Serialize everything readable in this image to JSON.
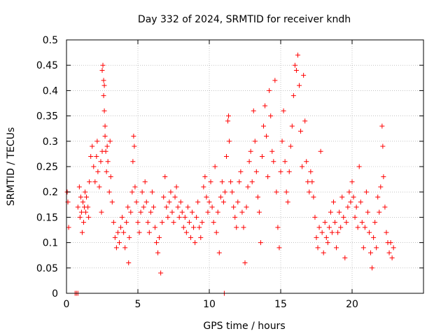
{
  "chart_data": {
    "type": "scatter",
    "title": "Day 332 of 2024, SRMTID for receiver kndh",
    "xlabel": "GPS time / hours",
    "ylabel": "SRMTID / TECUs",
    "xlim": [
      0,
      25
    ],
    "ylim": [
      0,
      0.5
    ],
    "x_ticks": [
      0,
      5,
      10,
      15,
      20
    ],
    "x_tick_labels": [
      "0",
      "5",
      "10",
      "15",
      "20"
    ],
    "y_ticks": [
      0,
      0.05,
      0.1,
      0.15,
      0.2,
      0.25,
      0.3,
      0.35,
      0.4,
      0.45,
      0.5
    ],
    "y_tick_labels": [
      "0",
      "0.05",
      "0.1",
      "0.15",
      "0.2",
      "0.25",
      "0.3",
      "0.35",
      "0.4",
      "0.45",
      "0.5"
    ],
    "grid": true,
    "marker": "plus",
    "marker_color": "#ff0000",
    "series": [
      {
        "name": "SRMTID",
        "points": [
          [
            0.05,
            0.2
          ],
          [
            0.1,
            0.18
          ],
          [
            0.15,
            0.13
          ],
          [
            0.6,
            0.0
          ],
          [
            0.7,
            0.0
          ],
          [
            0.8,
            0.0
          ],
          [
            0.8,
            0.17
          ],
          [
            0.9,
            0.21
          ],
          [
            0.95,
            0.15
          ],
          [
            1.0,
            0.19
          ],
          [
            1.05,
            0.16
          ],
          [
            1.1,
            0.12
          ],
          [
            1.15,
            0.18
          ],
          [
            1.2,
            0.14
          ],
          [
            1.25,
            0.17
          ],
          [
            1.3,
            0.2
          ],
          [
            1.35,
            0.16
          ],
          [
            1.4,
            0.19
          ],
          [
            1.5,
            0.17
          ],
          [
            1.55,
            0.15
          ],
          [
            1.6,
            0.22
          ],
          [
            1.7,
            0.27
          ],
          [
            1.8,
            0.29
          ],
          [
            1.9,
            0.25
          ],
          [
            2.0,
            0.22
          ],
          [
            2.1,
            0.27
          ],
          [
            2.15,
            0.3
          ],
          [
            2.2,
            0.24
          ],
          [
            2.3,
            0.21
          ],
          [
            2.4,
            0.26
          ],
          [
            2.45,
            0.16
          ],
          [
            2.5,
            0.28
          ],
          [
            2.5,
            0.44
          ],
          [
            2.55,
            0.45
          ],
          [
            2.6,
            0.42
          ],
          [
            2.6,
            0.39
          ],
          [
            2.65,
            0.36
          ],
          [
            2.65,
            0.41
          ],
          [
            2.7,
            0.33
          ],
          [
            2.7,
            0.31
          ],
          [
            2.75,
            0.28
          ],
          [
            2.8,
            0.24
          ],
          [
            2.85,
            0.29
          ],
          [
            2.9,
            0.26
          ],
          [
            3.0,
            0.2
          ],
          [
            3.05,
            0.3
          ],
          [
            3.1,
            0.23
          ],
          [
            3.2,
            0.18
          ],
          [
            3.3,
            0.14
          ],
          [
            3.4,
            0.11
          ],
          [
            3.5,
            0.09
          ],
          [
            3.6,
            0.12
          ],
          [
            3.7,
            0.1
          ],
          [
            3.8,
            0.13
          ],
          [
            3.9,
            0.15
          ],
          [
            4.0,
            0.12
          ],
          [
            4.1,
            0.09
          ],
          [
            4.2,
            0.14
          ],
          [
            4.3,
            0.17
          ],
          [
            4.35,
            0.06
          ],
          [
            4.4,
            0.11
          ],
          [
            4.5,
            0.16
          ],
          [
            4.6,
            0.2
          ],
          [
            4.65,
            0.26
          ],
          [
            4.7,
            0.31
          ],
          [
            4.75,
            0.29
          ],
          [
            4.8,
            0.21
          ],
          [
            4.9,
            0.18
          ],
          [
            5.0,
            0.14
          ],
          [
            5.1,
            0.12
          ],
          [
            5.2,
            0.16
          ],
          [
            5.3,
            0.2
          ],
          [
            5.4,
            0.17
          ],
          [
            5.5,
            0.22
          ],
          [
            5.6,
            0.18
          ],
          [
            5.7,
            0.14
          ],
          [
            5.8,
            0.12
          ],
          [
            5.9,
            0.16
          ],
          [
            6.0,
            0.2
          ],
          [
            6.1,
            0.17
          ],
          [
            6.2,
            0.13
          ],
          [
            6.3,
            0.1
          ],
          [
            6.4,
            0.08
          ],
          [
            6.5,
            0.11
          ],
          [
            6.6,
            0.04
          ],
          [
            6.7,
            0.14
          ],
          [
            6.8,
            0.19
          ],
          [
            6.9,
            0.23
          ],
          [
            7.0,
            0.17
          ],
          [
            7.1,
            0.15
          ],
          [
            7.2,
            0.18
          ],
          [
            7.3,
            0.2
          ],
          [
            7.4,
            0.16
          ],
          [
            7.5,
            0.14
          ],
          [
            7.6,
            0.19
          ],
          [
            7.7,
            0.21
          ],
          [
            7.8,
            0.17
          ],
          [
            7.9,
            0.15
          ],
          [
            8.0,
            0.18
          ],
          [
            8.1,
            0.16
          ],
          [
            8.2,
            0.13
          ],
          [
            8.3,
            0.15
          ],
          [
            8.4,
            0.12
          ],
          [
            8.5,
            0.17
          ],
          [
            8.6,
            0.14
          ],
          [
            8.7,
            0.11
          ],
          [
            8.8,
            0.16
          ],
          [
            8.9,
            0.13
          ],
          [
            9.0,
            0.1
          ],
          [
            9.1,
            0.15
          ],
          [
            9.2,
            0.18
          ],
          [
            9.3,
            0.13
          ],
          [
            9.4,
            0.11
          ],
          [
            9.5,
            0.14
          ],
          [
            9.6,
            0.21
          ],
          [
            9.7,
            0.23
          ],
          [
            9.8,
            0.19
          ],
          [
            9.9,
            0.16
          ],
          [
            10.0,
            0.18
          ],
          [
            10.1,
            0.22
          ],
          [
            10.2,
            0.17
          ],
          [
            10.3,
            0.14
          ],
          [
            10.4,
            0.25
          ],
          [
            10.5,
            0.12
          ],
          [
            10.6,
            0.16
          ],
          [
            10.7,
            0.08
          ],
          [
            10.8,
            0.19
          ],
          [
            10.9,
            0.22
          ],
          [
            11.0,
            0.18
          ],
          [
            11.05,
            0.0
          ],
          [
            11.1,
            0.2
          ],
          [
            11.2,
            0.27
          ],
          [
            11.3,
            0.34
          ],
          [
            11.35,
            0.35
          ],
          [
            11.4,
            0.3
          ],
          [
            11.5,
            0.22
          ],
          [
            11.6,
            0.2
          ],
          [
            11.7,
            0.17
          ],
          [
            11.8,
            0.15
          ],
          [
            11.9,
            0.13
          ],
          [
            12.0,
            0.18
          ],
          [
            12.1,
            0.22
          ],
          [
            12.2,
            0.24
          ],
          [
            12.3,
            0.16
          ],
          [
            12.4,
            0.13
          ],
          [
            12.5,
            0.06
          ],
          [
            12.6,
            0.17
          ],
          [
            12.7,
            0.21
          ],
          [
            12.8,
            0.26
          ],
          [
            12.9,
            0.28
          ],
          [
            13.0,
            0.22
          ],
          [
            13.1,
            0.36
          ],
          [
            13.2,
            0.3
          ],
          [
            13.3,
            0.24
          ],
          [
            13.4,
            0.19
          ],
          [
            13.5,
            0.16
          ],
          [
            13.6,
            0.1
          ],
          [
            13.7,
            0.27
          ],
          [
            13.8,
            0.33
          ],
          [
            13.9,
            0.37
          ],
          [
            14.0,
            0.31
          ],
          [
            14.1,
            0.23
          ],
          [
            14.2,
            0.4
          ],
          [
            14.3,
            0.35
          ],
          [
            14.4,
            0.28
          ],
          [
            14.5,
            0.26
          ],
          [
            14.6,
            0.42
          ],
          [
            14.7,
            0.2
          ],
          [
            14.8,
            0.13
          ],
          [
            14.9,
            0.09
          ],
          [
            15.0,
            0.24
          ],
          [
            15.1,
            0.3
          ],
          [
            15.2,
            0.36
          ],
          [
            15.3,
            0.26
          ],
          [
            15.4,
            0.2
          ],
          [
            15.5,
            0.18
          ],
          [
            15.6,
            0.24
          ],
          [
            15.7,
            0.29
          ],
          [
            15.8,
            0.33
          ],
          [
            15.9,
            0.39
          ],
          [
            16.0,
            0.45
          ],
          [
            16.1,
            0.44
          ],
          [
            16.2,
            0.47
          ],
          [
            16.3,
            0.41
          ],
          [
            16.4,
            0.32
          ],
          [
            16.5,
            0.25
          ],
          [
            16.6,
            0.43
          ],
          [
            16.7,
            0.34
          ],
          [
            16.8,
            0.26
          ],
          [
            16.9,
            0.22
          ],
          [
            17.0,
            0.2
          ],
          [
            17.1,
            0.24
          ],
          [
            17.2,
            0.22
          ],
          [
            17.3,
            0.19
          ],
          [
            17.4,
            0.15
          ],
          [
            17.5,
            0.11
          ],
          [
            17.6,
            0.09
          ],
          [
            17.7,
            0.13
          ],
          [
            17.8,
            0.28
          ],
          [
            17.9,
            0.12
          ],
          [
            18.0,
            0.08
          ],
          [
            18.1,
            0.14
          ],
          [
            18.2,
            0.11
          ],
          [
            18.3,
            0.1
          ],
          [
            18.4,
            0.13
          ],
          [
            18.5,
            0.16
          ],
          [
            18.6,
            0.12
          ],
          [
            18.7,
            0.18
          ],
          [
            18.8,
            0.14
          ],
          [
            18.9,
            0.09
          ],
          [
            19.0,
            0.12
          ],
          [
            19.1,
            0.16
          ],
          [
            19.2,
            0.13
          ],
          [
            19.3,
            0.19
          ],
          [
            19.4,
            0.15
          ],
          [
            19.5,
            0.07
          ],
          [
            19.6,
            0.14
          ],
          [
            19.7,
            0.17
          ],
          [
            19.8,
            0.2
          ],
          [
            19.9,
            0.18
          ],
          [
            20.0,
            0.22
          ],
          [
            20.1,
            0.19
          ],
          [
            20.2,
            0.15
          ],
          [
            20.3,
            0.17
          ],
          [
            20.4,
            0.13
          ],
          [
            20.5,
            0.25
          ],
          [
            20.6,
            0.18
          ],
          [
            20.7,
            0.14
          ],
          [
            20.8,
            0.09
          ],
          [
            20.9,
            0.13
          ],
          [
            21.0,
            0.2
          ],
          [
            21.1,
            0.16
          ],
          [
            21.2,
            0.12
          ],
          [
            21.3,
            0.08
          ],
          [
            21.4,
            0.05
          ],
          [
            21.5,
            0.11
          ],
          [
            21.6,
            0.14
          ],
          [
            21.7,
            0.09
          ],
          [
            21.8,
            0.19
          ],
          [
            21.9,
            0.16
          ],
          [
            22.0,
            0.21
          ],
          [
            22.1,
            0.33
          ],
          [
            22.15,
            0.29
          ],
          [
            22.2,
            0.23
          ],
          [
            22.3,
            0.17
          ],
          [
            22.4,
            0.12
          ],
          [
            22.5,
            0.1
          ],
          [
            22.6,
            0.08
          ],
          [
            22.7,
            0.1
          ],
          [
            22.8,
            0.07
          ],
          [
            22.9,
            0.09
          ]
        ]
      }
    ]
  }
}
